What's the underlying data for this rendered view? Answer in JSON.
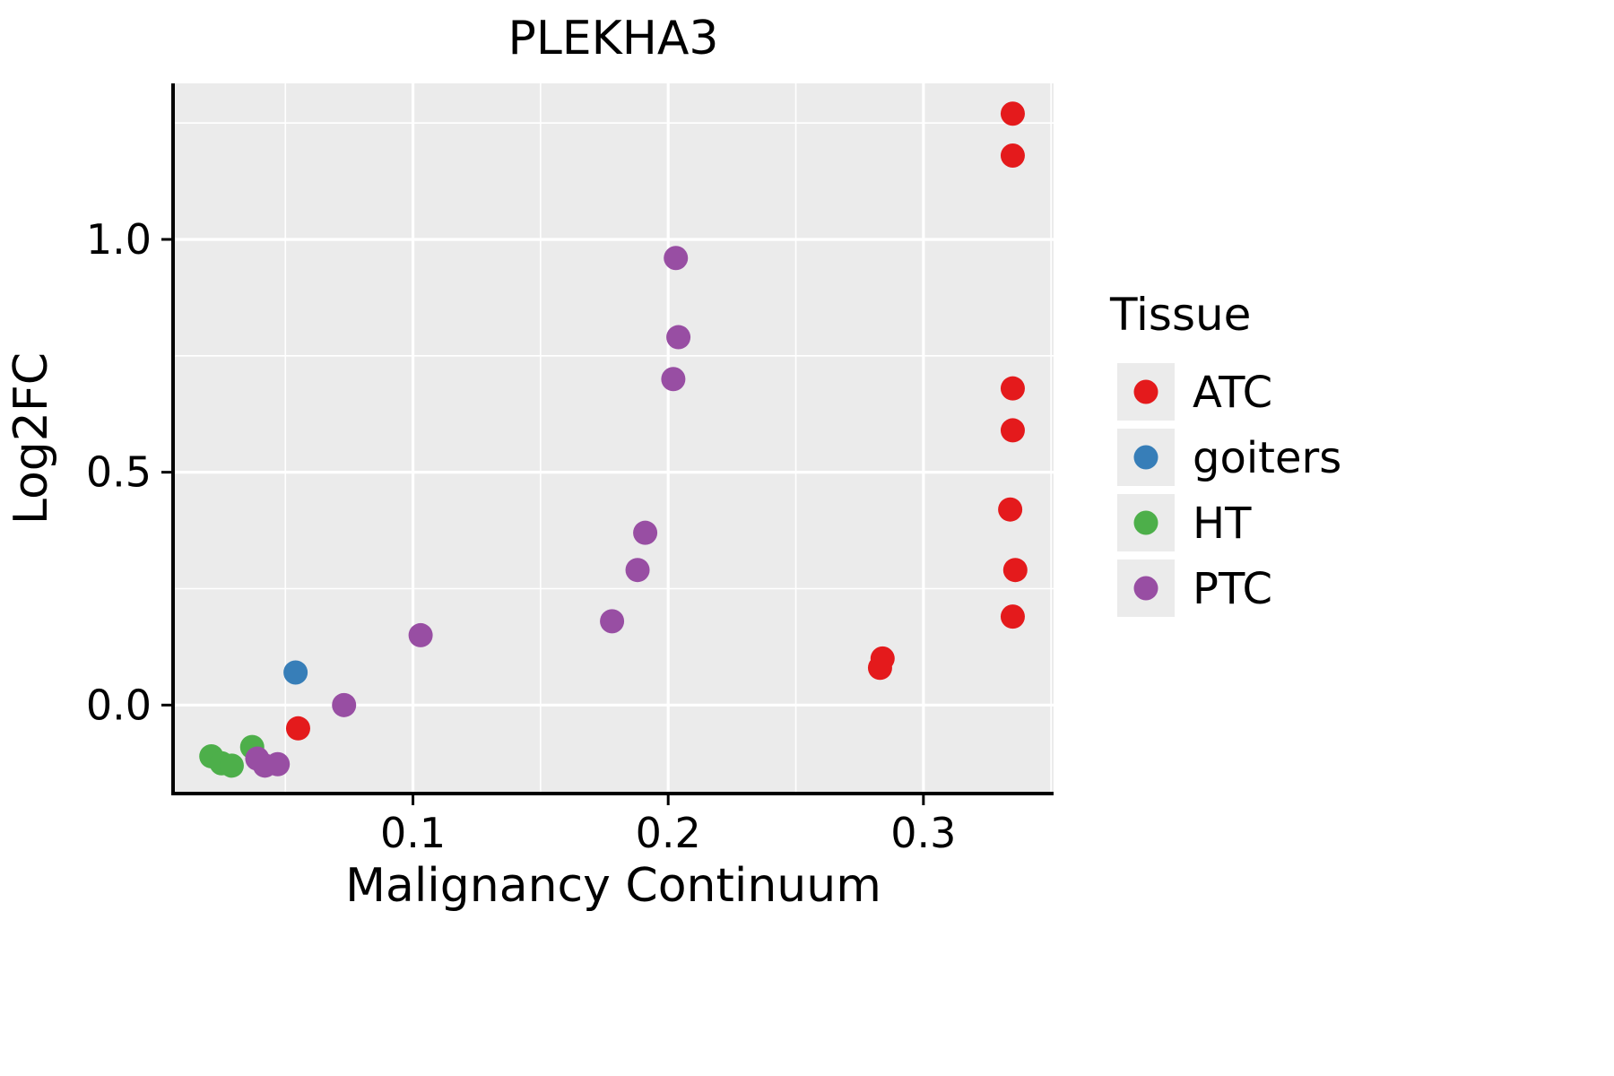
{
  "chart_data": {
    "type": "scatter",
    "title": "PLEKHA3",
    "xlabel": "Malignancy Continuum",
    "ylabel": "Log2FC",
    "xlim": [
      0.006,
      0.351
    ],
    "ylim": [
      -0.19,
      1.335
    ],
    "x_ticks": {
      "values": [
        0.1,
        0.2,
        0.3
      ],
      "labels": [
        "0.1",
        "0.2",
        "0.3"
      ]
    },
    "y_ticks": {
      "values": [
        0.0,
        0.5,
        1.0
      ],
      "labels": [
        "0.0",
        "0.5",
        "1.0"
      ]
    },
    "x_minor_ticks": [
      0.05,
      0.15,
      0.25,
      0.35
    ],
    "y_minor_ticks": [
      0.25,
      0.75,
      1.25
    ],
    "grid": true,
    "panel_background": "#EBEBEB",
    "grid_color": "#FFFFFF",
    "axis_color": "#000000",
    "point_radius": 13.5,
    "legend": {
      "title": "Tissue",
      "position": "right",
      "key_background": "#EBEBEB"
    },
    "series": [
      {
        "name": "ATC",
        "color": "#E41A1C",
        "points": [
          [
            0.335,
            1.27
          ],
          [
            0.335,
            1.18
          ],
          [
            0.335,
            0.68
          ],
          [
            0.335,
            0.59
          ],
          [
            0.334,
            0.42
          ],
          [
            0.336,
            0.29
          ],
          [
            0.335,
            0.19
          ],
          [
            0.284,
            0.1
          ],
          [
            0.283,
            0.08
          ],
          [
            0.055,
            -0.05
          ]
        ]
      },
      {
        "name": "goiters",
        "color": "#377EB8",
        "points": [
          [
            0.054,
            0.07
          ]
        ]
      },
      {
        "name": "HT",
        "color": "#4DAF4A",
        "points": [
          [
            0.021,
            -0.11
          ],
          [
            0.025,
            -0.125
          ],
          [
            0.029,
            -0.13
          ],
          [
            0.037,
            -0.09
          ]
        ]
      },
      {
        "name": "PTC",
        "color": "#984EA3",
        "points": [
          [
            0.203,
            0.96
          ],
          [
            0.204,
            0.79
          ],
          [
            0.202,
            0.7
          ],
          [
            0.191,
            0.37
          ],
          [
            0.188,
            0.29
          ],
          [
            0.178,
            0.18
          ],
          [
            0.103,
            0.15
          ],
          [
            0.073,
            0.0
          ],
          [
            0.039,
            -0.115
          ],
          [
            0.042,
            -0.13
          ],
          [
            0.047,
            -0.127
          ]
        ]
      }
    ]
  }
}
